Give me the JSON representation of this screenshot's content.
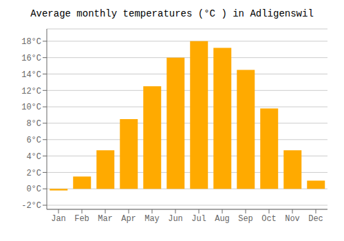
{
  "chart_data": {
    "type": "bar",
    "title": "Average monthly temperatures (°C ) in Adligenswil",
    "categories": [
      "Jan",
      "Feb",
      "Mar",
      "Apr",
      "May",
      "Jun",
      "Jul",
      "Aug",
      "Sep",
      "Oct",
      "Nov",
      "Dec"
    ],
    "values": [
      -0.2,
      1.5,
      4.7,
      8.5,
      12.5,
      16.0,
      18.0,
      17.2,
      14.5,
      9.8,
      4.7,
      1.0
    ],
    "color": "#FFAA00",
    "ylim": [
      -2.5,
      19.5
    ],
    "yticks": [
      {
        "value": -2,
        "label": "-2°C"
      },
      {
        "value": 0,
        "label": "0°C"
      },
      {
        "value": 2,
        "label": "2°C"
      },
      {
        "value": 4,
        "label": "4°C"
      },
      {
        "value": 6,
        "label": "6°C"
      },
      {
        "value": 8,
        "label": "8°C"
      },
      {
        "value": 10,
        "label": "10°C"
      },
      {
        "value": 12,
        "label": "12°C"
      },
      {
        "value": 14,
        "label": "14°C"
      },
      {
        "value": 16,
        "label": "16°C"
      },
      {
        "value": 18,
        "label": "18°C"
      }
    ],
    "grid": true
  }
}
